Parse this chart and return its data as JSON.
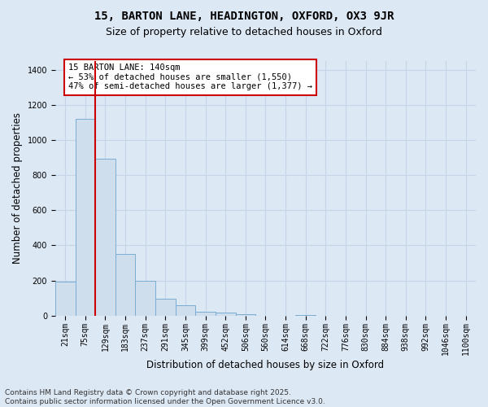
{
  "title_line1": "15, BARTON LANE, HEADINGTON, OXFORD, OX3 9JR",
  "title_line2": "Size of property relative to detached houses in Oxford",
  "xlabel": "Distribution of detached houses by size in Oxford",
  "ylabel": "Number of detached properties",
  "annotation_line1": "15 BARTON LANE: 140sqm",
  "annotation_line2": "← 53% of detached houses are smaller (1,550)",
  "annotation_line3": "47% of semi-detached houses are larger (1,377) →",
  "footer_line1": "Contains HM Land Registry data © Crown copyright and database right 2025.",
  "footer_line2": "Contains public sector information licensed under the Open Government Licence v3.0.",
  "categories": [
    "21sqm",
    "75sqm",
    "129sqm",
    "183sqm",
    "237sqm",
    "291sqm",
    "345sqm",
    "399sqm",
    "452sqm",
    "506sqm",
    "560sqm",
    "614sqm",
    "668sqm",
    "722sqm",
    "776sqm",
    "830sqm",
    "884sqm",
    "938sqm",
    "992sqm",
    "1046sqm",
    "1100sqm"
  ],
  "bar_values": [
    193,
    1122,
    893,
    353,
    197,
    97,
    57,
    20,
    15,
    10,
    0,
    0,
    5,
    0,
    0,
    0,
    0,
    0,
    0,
    0,
    0
  ],
  "bar_color": "#cfdeed",
  "bar_edgecolor": "#7aadd4",
  "redline_x": 1.5,
  "redline_color": "#cc0000",
  "ylim": [
    0,
    1450
  ],
  "yticks": [
    0,
    200,
    400,
    600,
    800,
    1000,
    1200,
    1400
  ],
  "background_color": "#dde8f5",
  "plot_bg_color": "#dde8f5",
  "grid_color": "#c5d5e8",
  "title_fontsize": 10,
  "subtitle_fontsize": 9,
  "axis_label_fontsize": 8.5,
  "tick_fontsize": 7,
  "annotation_fontsize": 7.5,
  "footer_fontsize": 6.5
}
